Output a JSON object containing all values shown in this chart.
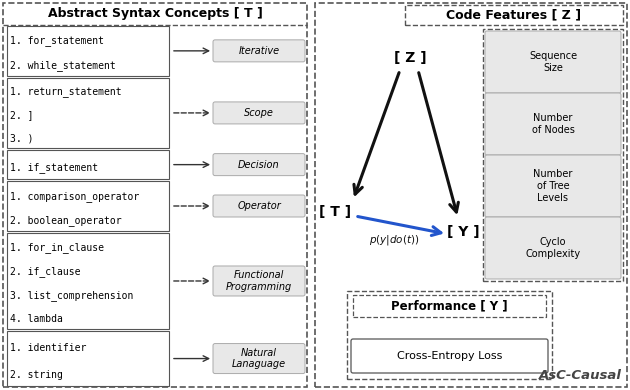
{
  "left_title": "Abstract Syntax Concepts [ T ]",
  "right_title": "Code Features [ Z ]",
  "left_boxes": [
    {
      "lines": [
        "1. for_statement",
        "2. while_statement"
      ],
      "arrow": "solid"
    },
    {
      "lines": [
        "1. return_statement",
        "2. ]",
        "3. )"
      ],
      "arrow": "dashed"
    },
    {
      "lines": [
        "1. if_statement"
      ],
      "arrow": "solid"
    },
    {
      "lines": [
        "1. comparison_operator",
        "2. boolean_operator"
      ],
      "arrow": "dashed"
    },
    {
      "lines": [
        "1. for_in_clause",
        "2. if_clause",
        "3. list_comprehension",
        "4. lambda"
      ],
      "arrow": "dashed"
    },
    {
      "lines": [
        "1. identifier",
        "2. string"
      ],
      "arrow": "solid"
    }
  ],
  "right_labels": [
    "Iterative",
    "Scope",
    "Decision",
    "Operator",
    "Functional\nProgramming",
    "Natural\nLanaguage"
  ],
  "code_features": [
    "Sequence\nSize",
    "Number\nof Nodes",
    "Number\nof Tree\nLevels",
    "Cyclo\nComplexity"
  ],
  "performance_label": "Performance [ Y ]",
  "performance_item": "Cross-Entropy Loss",
  "causal_label": "AsC-Causal",
  "bg_color": "#ffffff"
}
